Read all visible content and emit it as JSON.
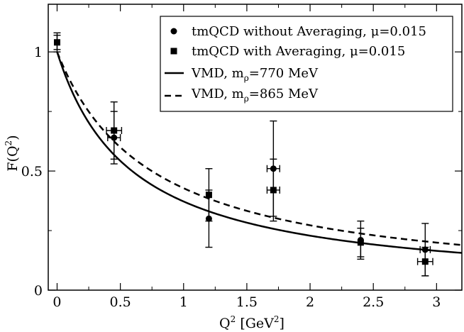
{
  "chart_data": {
    "type": "scatter",
    "title": "",
    "xlabel": {
      "main": "Q",
      "sup": "2",
      "unit_pre": "[GeV",
      "unit_sup": "2",
      "unit_post": "]"
    },
    "ylabel": {
      "main": "F(Q",
      "sup": "2",
      "post": ")"
    },
    "xlim": [
      -0.07,
      3.2
    ],
    "ylim": [
      0,
      1.2
    ],
    "xticks": [
      {
        "v": 0,
        "label": "0"
      },
      {
        "v": 0.5,
        "label": "0.5"
      },
      {
        "v": 1,
        "label": "1"
      },
      {
        "v": 1.5,
        "label": "1.5"
      },
      {
        "v": 2,
        "label": "2"
      },
      {
        "v": 2.5,
        "label": "2.5"
      },
      {
        "v": 3,
        "label": "3"
      }
    ],
    "yticks": [
      {
        "v": 0,
        "label": "0"
      },
      {
        "v": 0.5,
        "label": "0.5"
      },
      {
        "v": 1,
        "label": "1"
      }
    ],
    "xminor": [
      0.25,
      0.75,
      1.25,
      1.75,
      2.25,
      2.75
    ],
    "yminor": [
      0.25,
      0.75
    ],
    "series": [
      {
        "name": "tmQCD without Averaging",
        "legend_main": "tmQCD without Averaging, ",
        "legend_greek": "μ",
        "legend_post": "=0.015",
        "marker": "circle",
        "points": [
          {
            "x": 0.0,
            "y": 1.04,
            "yerr": 0.04,
            "xerr": 0
          },
          {
            "x": 0.45,
            "y": 0.64,
            "yerr": 0.11,
            "xerr": 0.05
          },
          {
            "x": 1.2,
            "y": 0.3,
            "yerr": 0.12,
            "xerr": 0
          },
          {
            "x": 1.71,
            "y": 0.51,
            "yerr": 0.2,
            "xerr": 0.05
          },
          {
            "x": 2.4,
            "y": 0.21,
            "yerr": 0.08,
            "xerr": 0
          },
          {
            "x": 2.91,
            "y": 0.17,
            "yerr": 0.11,
            "xerr": 0.04
          }
        ]
      },
      {
        "name": "tmQCD with Averaging",
        "legend_main": "tmQCD with Averaging, ",
        "legend_greek": "μ",
        "legend_post": "=0.015",
        "marker": "square",
        "points": [
          {
            "x": 0.0,
            "y": 1.04,
            "yerr": 0.03,
            "xerr": 0
          },
          {
            "x": 0.45,
            "y": 0.67,
            "yerr": 0.12,
            "xerr": 0.06
          },
          {
            "x": 1.2,
            "y": 0.4,
            "yerr": 0.11,
            "xerr": 0
          },
          {
            "x": 1.71,
            "y": 0.42,
            "yerr": 0.13,
            "xerr": 0.05
          },
          {
            "x": 2.4,
            "y": 0.2,
            "yerr": 0.06,
            "xerr": 0
          },
          {
            "x": 2.91,
            "y": 0.12,
            "yerr": 0.06,
            "xerr": 0.06
          }
        ]
      }
    ],
    "curves": [
      {
        "name": "VMD, m_rho=770 MeV",
        "legend_main": "VMD, m",
        "legend_sub": "ρ",
        "legend_post": "=770 MeV",
        "mass_gev": 0.77,
        "style": "solid"
      },
      {
        "name": "VMD, m_rho=865 MeV",
        "legend_main": "VMD, m",
        "legend_sub": "ρ",
        "legend_post": "=865 MeV",
        "mass_gev": 0.865,
        "style": "dashed"
      }
    ],
    "legend_position": "top-right"
  }
}
